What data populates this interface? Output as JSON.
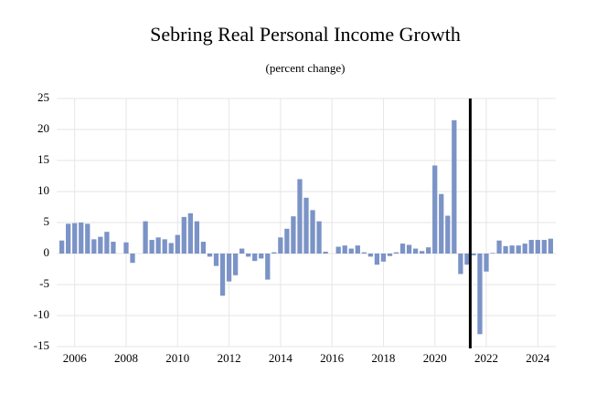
{
  "chart_data": {
    "type": "bar",
    "title": "Sebring Real Personal Income Growth",
    "subtitle": "(percent change)",
    "x": [
      2005.5,
      2005.75,
      2006,
      2006.25,
      2006.5,
      2006.75,
      2007,
      2007.25,
      2007.5,
      2007.75,
      2008,
      2008.25,
      2008.5,
      2008.75,
      2009,
      2009.25,
      2009.5,
      2009.75,
      2010,
      2010.25,
      2010.5,
      2010.75,
      2011,
      2011.25,
      2011.5,
      2011.75,
      2012,
      2012.25,
      2012.5,
      2012.75,
      2013,
      2013.25,
      2013.5,
      2013.75,
      2014,
      2014.25,
      2014.5,
      2014.75,
      2015,
      2015.25,
      2015.5,
      2015.75,
      2016,
      2016.25,
      2016.5,
      2016.75,
      2017,
      2017.25,
      2017.5,
      2017.75,
      2018,
      2018.25,
      2018.5,
      2018.75,
      2019,
      2019.25,
      2019.5,
      2019.75,
      2020,
      2020.25,
      2020.5,
      2020.75,
      2021,
      2021.25,
      2021.5,
      2021.75,
      2022,
      2022.25,
      2022.5,
      2022.75,
      2023,
      2023.25,
      2023.5,
      2023.75,
      2024,
      2024.25,
      2024.5
    ],
    "values": [
      2.1,
      4.8,
      4.9,
      5.0,
      4.8,
      2.3,
      2.7,
      3.5,
      1.9,
      0,
      1.8,
      -1.5,
      0,
      5.2,
      2.2,
      2.6,
      2.3,
      1.7,
      3.0,
      5.9,
      6.5,
      5.2,
      1.9,
      -0.5,
      -2.0,
      -6.8,
      -4.5,
      -3.5,
      0.8,
      -0.5,
      -1.2,
      -0.8,
      -4.2,
      0.2,
      2.6,
      4.0,
      6.0,
      12.0,
      9.0,
      7.0,
      5.2,
      0.3,
      0,
      1.1,
      1.3,
      0.8,
      1.3,
      0.2,
      -0.5,
      -1.8,
      -1.3,
      -0.4,
      0.2,
      1.6,
      1.4,
      0.8,
      0.4,
      1.0,
      14.2,
      9.6,
      6.1,
      21.5,
      -3.3,
      -1.8,
      -0.3,
      -13.0,
      -2.9,
      0.1,
      2.1,
      1.2,
      1.3,
      1.3,
      1.6,
      2.2,
      2.2,
      2.2,
      2.4
    ],
    "color": "#7b93c6",
    "xlim": [
      2005.3,
      2024.7
    ],
    "xticks": [
      2006,
      2008,
      2010,
      2012,
      2014,
      2016,
      2018,
      2020,
      2022,
      2024
    ],
    "ylim": [
      -15,
      25
    ],
    "yticks": [
      -15,
      -10,
      -5,
      0,
      5,
      10,
      15,
      20,
      25
    ],
    "grid": true,
    "vline": 2021.375
  }
}
